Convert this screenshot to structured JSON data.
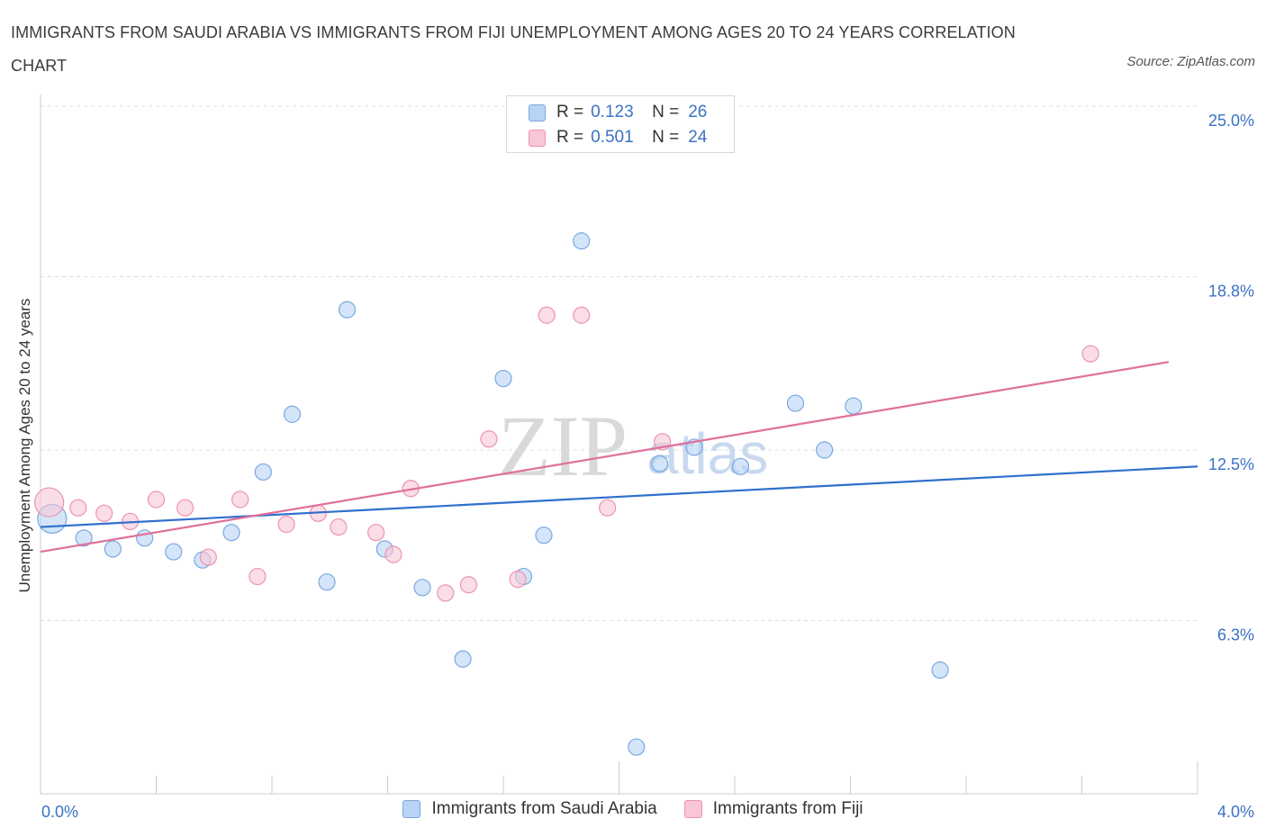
{
  "title": "IMMIGRANTS FROM SAUDI ARABIA VS IMMIGRANTS FROM FIJI UNEMPLOYMENT AMONG AGES 20 TO 24 YEARS CORRELATION CHART",
  "source": "Source: ZipAtlas.com",
  "colors": {
    "blue_fill": "#b8d3f5",
    "blue_stroke": "#7aa8e0",
    "blue_line": "#2f6fcc",
    "pink_fill": "#f8c6d6",
    "pink_stroke": "#ec93b1",
    "pink_line": "#e0709a",
    "axis_label": "#3b72c4",
    "grid": "#dddddd"
  },
  "legend_top": {
    "rows": [
      {
        "r_label": "R =",
        "r_value": "0.123",
        "n_label": "N =",
        "n_value": "26"
      },
      {
        "r_label": "R =",
        "r_value": "0.501",
        "n_label": "N =",
        "n_value": "24"
      }
    ]
  },
  "chart_data": {
    "type": "scatter",
    "title": "IMMIGRANTS FROM SAUDI ARABIA VS IMMIGRANTS FROM FIJI UNEMPLOYMENT AMONG AGES 20 TO 24 YEARS CORRELATION CHART",
    "xlabel": "",
    "ylabel": "Unemployment Among Ages 20 to 24 years",
    "xlim": [
      0.0,
      4.0
    ],
    "ylim": [
      0.0,
      25.0
    ],
    "x_tick_labels": [
      "0.0%",
      "4.0%"
    ],
    "y_ticks": [
      6.3,
      12.5,
      18.8,
      25.0
    ],
    "y_tick_labels": [
      "6.3%",
      "12.5%",
      "18.8%",
      "25.0%"
    ],
    "watermark": [
      "ZIP",
      "atlas"
    ],
    "series": [
      {
        "name": "Immigrants from Saudi Arabia",
        "color": "blue",
        "r": 0.123,
        "n": 26,
        "trend": {
          "x": [
            0.0,
            4.0
          ],
          "y": [
            9.7,
            11.9
          ]
        },
        "points": [
          {
            "x": 0.04,
            "y": 10.0,
            "big": true
          },
          {
            "x": 0.15,
            "y": 9.3
          },
          {
            "x": 0.25,
            "y": 8.9
          },
          {
            "x": 0.36,
            "y": 9.3
          },
          {
            "x": 0.46,
            "y": 8.8
          },
          {
            "x": 0.56,
            "y": 8.5
          },
          {
            "x": 0.66,
            "y": 9.5
          },
          {
            "x": 0.77,
            "y": 11.7
          },
          {
            "x": 0.87,
            "y": 13.8
          },
          {
            "x": 0.99,
            "y": 7.7
          },
          {
            "x": 1.06,
            "y": 17.6
          },
          {
            "x": 1.19,
            "y": 8.9
          },
          {
            "x": 1.32,
            "y": 7.5
          },
          {
            "x": 1.46,
            "y": 4.9
          },
          {
            "x": 1.6,
            "y": 15.1
          },
          {
            "x": 1.67,
            "y": 7.9
          },
          {
            "x": 1.74,
            "y": 9.4
          },
          {
            "x": 1.87,
            "y": 20.1
          },
          {
            "x": 2.06,
            "y": 1.7
          },
          {
            "x": 2.14,
            "y": 12.0
          },
          {
            "x": 2.26,
            "y": 12.6
          },
          {
            "x": 2.42,
            "y": 11.9
          },
          {
            "x": 2.61,
            "y": 14.2
          },
          {
            "x": 2.71,
            "y": 12.5
          },
          {
            "x": 2.81,
            "y": 14.1
          },
          {
            "x": 3.11,
            "y": 4.5
          }
        ]
      },
      {
        "name": "Immigrants from Fiji",
        "color": "pink",
        "r": 0.501,
        "n": 24,
        "trend": {
          "x": [
            0.0,
            3.9
          ],
          "y": [
            8.8,
            15.7
          ]
        },
        "points": [
          {
            "x": 0.03,
            "y": 10.6,
            "big": true
          },
          {
            "x": 0.13,
            "y": 10.4
          },
          {
            "x": 0.22,
            "y": 10.2
          },
          {
            "x": 0.31,
            "y": 9.9
          },
          {
            "x": 0.4,
            "y": 10.7
          },
          {
            "x": 0.5,
            "y": 10.4
          },
          {
            "x": 0.58,
            "y": 8.6
          },
          {
            "x": 0.69,
            "y": 10.7
          },
          {
            "x": 0.75,
            "y": 7.9
          },
          {
            "x": 0.85,
            "y": 9.8
          },
          {
            "x": 0.96,
            "y": 10.2
          },
          {
            "x": 1.03,
            "y": 9.7
          },
          {
            "x": 1.16,
            "y": 9.5
          },
          {
            "x": 1.22,
            "y": 8.7
          },
          {
            "x": 1.28,
            "y": 11.1
          },
          {
            "x": 1.4,
            "y": 7.3
          },
          {
            "x": 1.48,
            "y": 7.6
          },
          {
            "x": 1.55,
            "y": 12.9
          },
          {
            "x": 1.65,
            "y": 7.8
          },
          {
            "x": 1.75,
            "y": 17.4
          },
          {
            "x": 1.87,
            "y": 17.4
          },
          {
            "x": 1.96,
            "y": 10.4
          },
          {
            "x": 2.15,
            "y": 12.8
          },
          {
            "x": 3.63,
            "y": 16.0
          }
        ]
      }
    ]
  },
  "legend_bottom": [
    {
      "label": "Immigrants from Saudi Arabia"
    },
    {
      "label": "Immigrants from Fiji"
    }
  ]
}
